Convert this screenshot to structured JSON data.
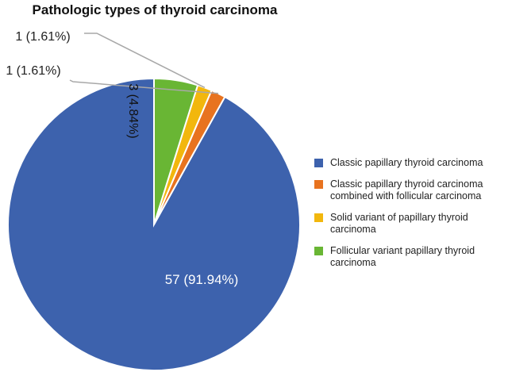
{
  "chart_data": {
    "type": "pie",
    "title": "Pathologic types of thyroid carcinoma",
    "slices": [
      {
        "label": "Classic papillary thyroid carcinoma",
        "value": 57,
        "percent": 91.94,
        "data_label": "57 (91.94%)",
        "color": "#3d62ad"
      },
      {
        "label": "Classic papillary thyroid carcinoma\ncombined with follicular carcinoma",
        "value": 1,
        "percent": 1.61,
        "data_label": "1 (1.61%)",
        "color": "#e8731f"
      },
      {
        "label": "Solid variant of papillary thyroid\ncarcinoma",
        "value": 1,
        "percent": 1.61,
        "data_label": "1 (1.61%)",
        "color": "#f2b70d"
      },
      {
        "label": "Follicular variant papillary thyroid\ncarcinoma",
        "value": 3,
        "percent": 4.84,
        "data_label": "3 (4.84%)",
        "color": "#69b634"
      }
    ],
    "legend_position": "right",
    "start_angle": "12 o'clock",
    "direction": "counterclockwise"
  }
}
